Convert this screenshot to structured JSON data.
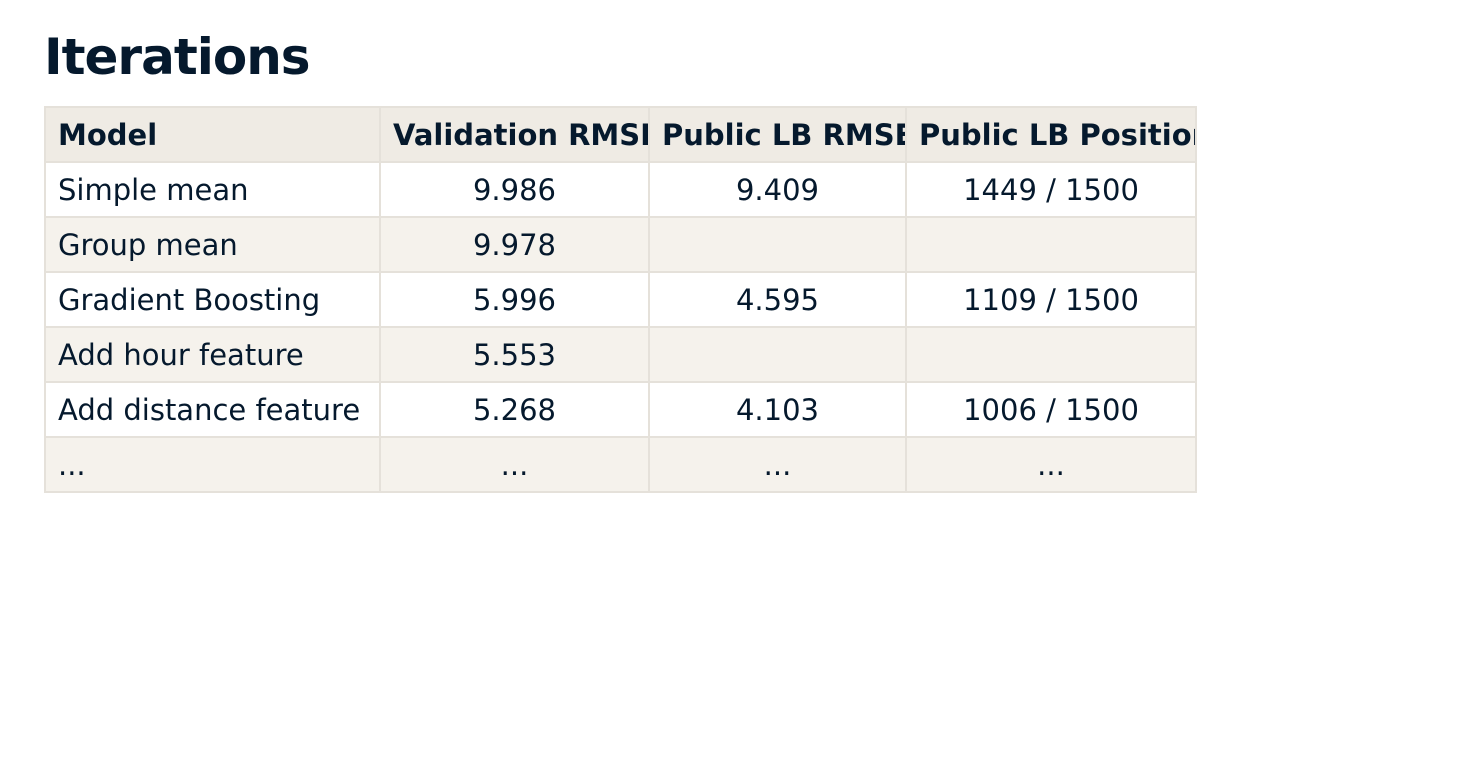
{
  "page": {
    "title": "Iterations"
  },
  "table": {
    "headers": {
      "model": "Model",
      "validation_rmse": "Validation RMSE",
      "public_lb_rmse": "Public LB RMSE",
      "public_lb_position": "Public LB Position"
    },
    "rows": [
      {
        "model": "Simple mean",
        "validation_rmse": "9.986",
        "public_lb_rmse": "9.409",
        "public_lb_position": "1449 / 1500"
      },
      {
        "model": "Group mean",
        "validation_rmse": "9.978",
        "public_lb_rmse": "",
        "public_lb_position": ""
      },
      {
        "model": "Gradient Boosting",
        "validation_rmse": "5.996",
        "public_lb_rmse": "4.595",
        "public_lb_position": "1109 / 1500"
      },
      {
        "model": "Add hour feature",
        "validation_rmse": "5.553",
        "public_lb_rmse": "",
        "public_lb_position": ""
      },
      {
        "model": "Add distance feature",
        "validation_rmse": "5.268",
        "public_lb_rmse": "4.103",
        "public_lb_position": "1006 / 1500"
      },
      {
        "model": "...",
        "validation_rmse": "...",
        "public_lb_rmse": "...",
        "public_lb_position": "..."
      }
    ]
  },
  "colors": {
    "text": "#05192d",
    "header_background": "#efebe4",
    "alt_row_background": "#f5f2ec",
    "border": "#e5e1da"
  }
}
